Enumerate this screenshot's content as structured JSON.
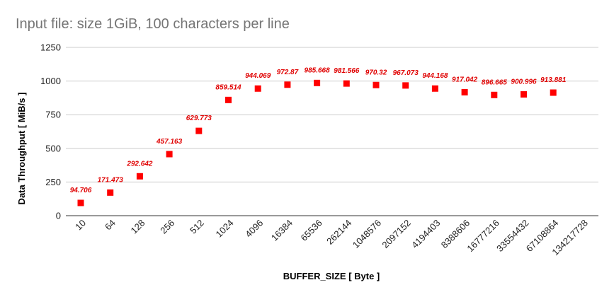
{
  "chart_data": {
    "type": "scatter",
    "title": "Input file: size 1GiB, 100 characters per line",
    "xlabel": "BUFFER_SIZE [ Byte ]",
    "ylabel": "Data Throughput [ MiB/s ]",
    "ylim": [
      0,
      1250
    ],
    "yticks": [
      "0",
      "250",
      "500",
      "750",
      "1000",
      "1250"
    ],
    "categories": [
      "10",
      "64",
      "128",
      "256",
      "512",
      "1024",
      "4096",
      "16384",
      "65536",
      "262144",
      "1048576",
      "2097152",
      "4194403",
      "8388606",
      "16777216",
      "33554432",
      "67108864",
      "134217728"
    ],
    "values": [
      94.706,
      171.473,
      292.642,
      457.163,
      629.773,
      859.514,
      944.069,
      972.87,
      985.668,
      981.566,
      970.32,
      967.073,
      944.168,
      917.042,
      896.665,
      900.996,
      913.881,
      null
    ],
    "data_labels": [
      "94.706",
      "171.473",
      "292.642",
      "457.163",
      "629.773",
      "859.514",
      "944.069",
      "972.87",
      "985.668",
      "981.566",
      "970.32",
      "967.073",
      "944.168",
      "917.042",
      "896.665",
      "900.996",
      "913.881",
      ""
    ],
    "grid": true,
    "legend": "none",
    "marker_color": "#ff0000",
    "label_color": "#e00000"
  }
}
